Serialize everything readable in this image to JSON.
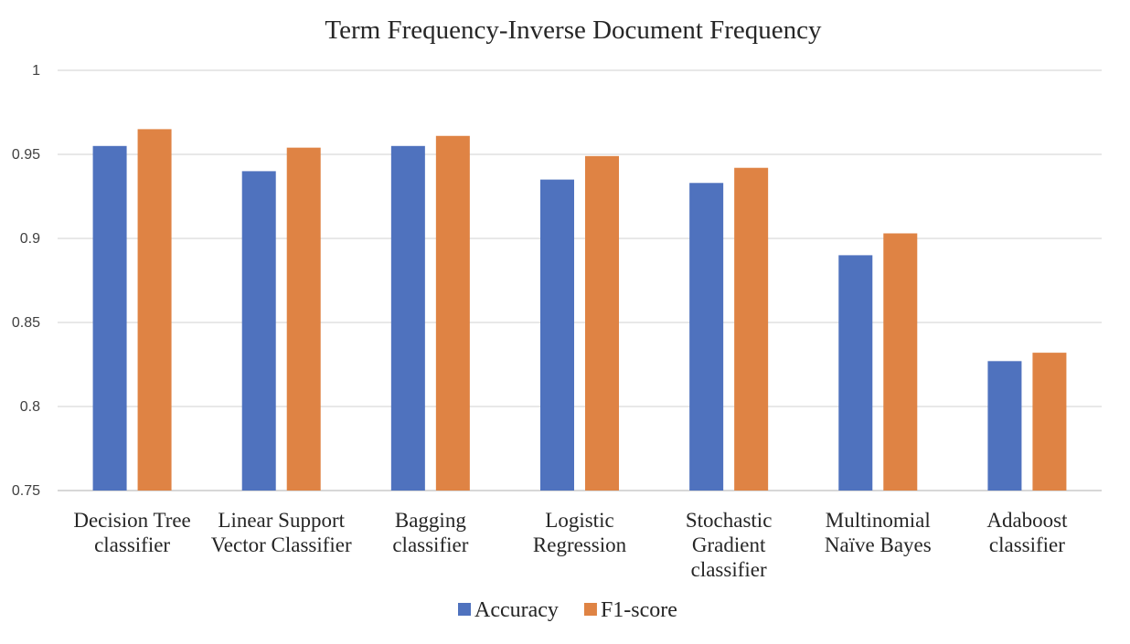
{
  "chart_data": {
    "type": "bar",
    "title": "Term Frequency-Inverse Document Frequency",
    "xlabel": "",
    "ylabel": "",
    "ylim": [
      0.75,
      1
    ],
    "yticks": [
      "0.75",
      "0.8",
      "0.85",
      "0.9",
      "0.95",
      "1"
    ],
    "grid": true,
    "legend_position": "bottom",
    "categories": [
      [
        "Decision Tree",
        "classifier"
      ],
      [
        "Linear Support",
        "Vector Classifier"
      ],
      [
        "Bagging",
        "classifier"
      ],
      [
        "Logistic",
        "Regression"
      ],
      [
        "Stochastic",
        "Gradient",
        "classifier"
      ],
      [
        "Multinomial",
        "Naïve Bayes"
      ],
      [
        "Adaboost",
        "classifier"
      ]
    ],
    "series": [
      {
        "name": "Accuracy",
        "color": "#4f72be",
        "values": [
          0.955,
          0.94,
          0.955,
          0.935,
          0.933,
          0.89,
          0.827
        ]
      },
      {
        "name": "F1-score",
        "color": "#df8344",
        "values": [
          0.965,
          0.954,
          0.961,
          0.949,
          0.942,
          0.903,
          0.832
        ]
      }
    ]
  }
}
